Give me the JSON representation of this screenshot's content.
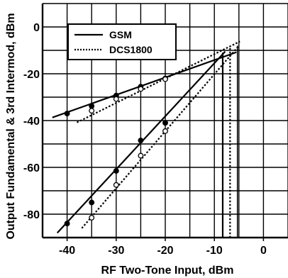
{
  "chart_data": {
    "type": "line",
    "title": "",
    "xlabel": "RF Two-Tone Input, dBm",
    "ylabel": "Output Fundamental & 3rd Intermod, dBm",
    "xlim": [
      -45,
      5
    ],
    "ylim": [
      -90,
      10
    ],
    "x_ticks": [
      -40,
      -30,
      -20,
      -10,
      0
    ],
    "x_tick_labels": [
      "-40",
      "-30",
      "-20",
      "-10",
      "0"
    ],
    "y_ticks": [
      0,
      -20,
      -40,
      -60,
      -80
    ],
    "y_tick_labels": [
      "0",
      "-20",
      "-40",
      "-60",
      "-80"
    ],
    "grid": true,
    "legend_position": "top-left",
    "series": [
      {
        "name": "GSM",
        "style": "solid",
        "color": "#000000",
        "marker": "filled-circle",
        "fundamental_line": [
          [
            -43,
            -38.7
          ],
          [
            -5.5,
            -10.8
          ]
        ],
        "fundamental_points": [
          [
            -40,
            -37
          ],
          [
            -35,
            -33.8
          ],
          [
            -30,
            -29.3
          ],
          [
            -25,
            -25.5
          ],
          [
            -20,
            -22
          ]
        ],
        "im3_line": [
          [
            -42,
            -88
          ],
          [
            -7.8,
            -10.5
          ]
        ],
        "im3_points": [
          [
            -40,
            -84
          ],
          [
            -35,
            -75
          ],
          [
            -30,
            -61.5
          ],
          [
            -25,
            -48.5
          ],
          [
            -20,
            -41
          ]
        ],
        "intercept_drop_x": -8.3
      },
      {
        "name": "DCS1800",
        "style": "dotted",
        "color": "#000000",
        "marker": "open-circle",
        "fundamental_line": [
          [
            -38,
            -40.8
          ],
          [
            -4.8,
            -6.2
          ]
        ],
        "fundamental_points": [
          [
            -35,
            -35.8
          ],
          [
            -30,
            -30.8
          ],
          [
            -25,
            -26.5
          ],
          [
            -20,
            -22.3
          ]
        ],
        "im3_line": [
          [
            -37,
            -86
          ],
          [
            -5,
            -8
          ]
        ],
        "im3_points": [
          [
            -35,
            -81.5
          ],
          [
            -30,
            -67.5
          ],
          [
            -25,
            -55
          ],
          [
            -20,
            -44.5
          ]
        ],
        "intercept_drop_x": -6.8
      }
    ],
    "extra_drop_x": -5.3
  }
}
